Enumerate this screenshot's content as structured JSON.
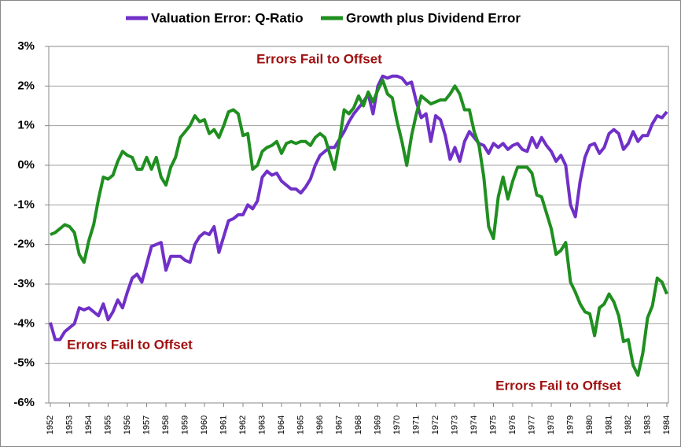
{
  "chart_data": {
    "type": "line",
    "x": [
      1952,
      1952.25,
      1952.5,
      1952.75,
      1953,
      1953.25,
      1953.5,
      1953.75,
      1954,
      1954.25,
      1954.5,
      1954.75,
      1955,
      1955.25,
      1955.5,
      1955.75,
      1956,
      1956.25,
      1956.5,
      1956.75,
      1957,
      1957.25,
      1957.5,
      1957.75,
      1958,
      1958.25,
      1958.5,
      1958.75,
      1959,
      1959.25,
      1959.5,
      1959.75,
      1960,
      1960.25,
      1960.5,
      1960.75,
      1961,
      1961.25,
      1961.5,
      1961.75,
      1962,
      1962.25,
      1962.5,
      1962.75,
      1963,
      1963.25,
      1963.5,
      1963.75,
      1964,
      1964.25,
      1964.5,
      1964.75,
      1965,
      1965.25,
      1965.5,
      1965.75,
      1966,
      1966.25,
      1966.5,
      1966.75,
      1967,
      1967.25,
      1967.5,
      1967.75,
      1968,
      1968.25,
      1968.5,
      1968.75,
      1969,
      1969.25,
      1969.5,
      1969.75,
      1970,
      1970.25,
      1970.5,
      1970.75,
      1971,
      1971.25,
      1971.5,
      1971.75,
      1972,
      1972.25,
      1972.5,
      1972.75,
      1973,
      1973.25,
      1973.5,
      1973.75,
      1974,
      1974.25,
      1974.5,
      1974.75,
      1975,
      1975.25,
      1975.5,
      1975.75,
      1976,
      1976.25,
      1976.5,
      1976.75,
      1977,
      1977.25,
      1977.5,
      1977.75,
      1978,
      1978.25,
      1978.5,
      1978.75,
      1979,
      1979.25,
      1979.5,
      1979.75,
      1980,
      1980.25,
      1980.5,
      1980.75,
      1981,
      1981.25,
      1981.5,
      1981.75,
      1982,
      1982.25,
      1982.5,
      1982.75,
      1983,
      1983.25,
      1983.5,
      1983.75,
      1984
    ],
    "series": [
      {
        "name": "Valuation Error: Q-Ratio",
        "color": "#7030c8",
        "values": [
          -3.97,
          -4.4,
          -4.4,
          -4.2,
          -4.1,
          -4.0,
          -3.6,
          -3.65,
          -3.6,
          -3.7,
          -3.8,
          -3.5,
          -3.9,
          -3.7,
          -3.4,
          -3.6,
          -3.2,
          -2.85,
          -2.75,
          -2.95,
          -2.5,
          -2.05,
          -2.0,
          -1.95,
          -2.65,
          -2.3,
          -2.3,
          -2.3,
          -2.4,
          -2.45,
          -2.0,
          -1.8,
          -1.7,
          -1.75,
          -1.55,
          -2.2,
          -1.8,
          -1.4,
          -1.35,
          -1.25,
          -1.25,
          -1.0,
          -1.1,
          -0.9,
          -0.3,
          -0.15,
          -0.25,
          -0.2,
          -0.4,
          -0.5,
          -0.6,
          -0.6,
          -0.7,
          -0.55,
          -0.35,
          0.0,
          0.25,
          0.35,
          0.45,
          0.45,
          0.65,
          0.85,
          1.1,
          1.3,
          1.45,
          1.6,
          1.8,
          1.3,
          2.0,
          2.25,
          2.2,
          2.25,
          2.25,
          2.2,
          2.05,
          2.1,
          1.6,
          1.2,
          1.3,
          0.6,
          1.25,
          1.15,
          0.75,
          0.15,
          0.45,
          0.1,
          0.6,
          0.85,
          0.7,
          0.55,
          0.5,
          0.3,
          0.55,
          0.45,
          0.55,
          0.4,
          0.5,
          0.55,
          0.4,
          0.35,
          0.7,
          0.45,
          0.7,
          0.5,
          0.35,
          0.1,
          0.25,
          0.0,
          -1.0,
          -1.3,
          -0.4,
          0.2,
          0.5,
          0.55,
          0.3,
          0.45,
          0.8,
          0.9,
          0.8,
          0.4,
          0.55,
          0.85,
          0.6,
          0.75,
          0.75,
          1.05,
          1.25,
          1.2,
          1.35
        ]
      },
      {
        "name": "Growth plus Dividend Error",
        "color": "#1f8f1f",
        "values": [
          -1.75,
          -1.7,
          -1.6,
          -1.5,
          -1.55,
          -1.7,
          -2.25,
          -2.45,
          -1.9,
          -1.5,
          -0.85,
          -0.3,
          -0.35,
          -0.25,
          0.1,
          0.35,
          0.25,
          0.2,
          -0.1,
          -0.1,
          0.2,
          -0.1,
          0.2,
          -0.3,
          -0.5,
          -0.05,
          0.2,
          0.7,
          0.85,
          1.0,
          1.25,
          1.1,
          1.15,
          0.8,
          0.9,
          0.7,
          1.0,
          1.35,
          1.4,
          1.3,
          0.75,
          0.8,
          -0.1,
          0.0,
          0.35,
          0.45,
          0.5,
          0.6,
          0.3,
          0.55,
          0.6,
          0.55,
          0.6,
          0.6,
          0.5,
          0.7,
          0.8,
          0.7,
          0.3,
          -0.1,
          0.6,
          1.4,
          1.3,
          1.45,
          1.75,
          1.5,
          1.85,
          1.6,
          1.9,
          2.15,
          1.8,
          1.7,
          1.1,
          0.6,
          0.0,
          0.75,
          1.3,
          1.75,
          1.65,
          1.55,
          1.6,
          1.65,
          1.65,
          1.8,
          2.0,
          1.8,
          1.4,
          1.4,
          0.85,
          0.5,
          -0.3,
          -1.55,
          -1.85,
          -0.8,
          -0.3,
          -0.85,
          -0.4,
          -0.05,
          -0.05,
          -0.05,
          -0.2,
          -0.75,
          -0.8,
          -1.2,
          -1.6,
          -2.25,
          -2.15,
          -1.95,
          -2.95,
          -3.2,
          -3.5,
          -3.7,
          -3.75,
          -4.3,
          -3.6,
          -3.5,
          -3.25,
          -3.45,
          -3.8,
          -4.45,
          -4.4,
          -5.05,
          -5.3,
          -4.75,
          -3.85,
          -3.55,
          -2.85,
          -2.95,
          -3.25
        ]
      }
    ],
    "annotations": [
      "Errors Fail to Offset",
      "Errors Fail to Offset",
      "Errors Fail to Offset"
    ],
    "annotation_color": "#a01010",
    "xlim": [
      1952,
      1984
    ],
    "xticks": [
      1952,
      1953,
      1954,
      1955,
      1956,
      1957,
      1958,
      1959,
      1960,
      1961,
      1962,
      1963,
      1964,
      1965,
      1966,
      1967,
      1968,
      1969,
      1970,
      1971,
      1972,
      1973,
      1974,
      1975,
      1976,
      1977,
      1978,
      1979,
      1980,
      1981,
      1982,
      1983,
      1984
    ],
    "ylim": [
      -6,
      3
    ],
    "yticks": [
      {
        "value": -6,
        "label": "-6%"
      },
      {
        "value": -5,
        "label": "-5%"
      },
      {
        "value": -4,
        "label": "-4%"
      },
      {
        "value": -3,
        "label": "-3%"
      },
      {
        "value": -2,
        "label": "-2%"
      },
      {
        "value": -1,
        "label": "-1%"
      },
      {
        "value": 0,
        "label": "0%"
      },
      {
        "value": 1,
        "label": "1%"
      },
      {
        "value": 2,
        "label": "2%"
      },
      {
        "value": 3,
        "label": "3%"
      }
    ],
    "grid": true,
    "legend": "top"
  }
}
